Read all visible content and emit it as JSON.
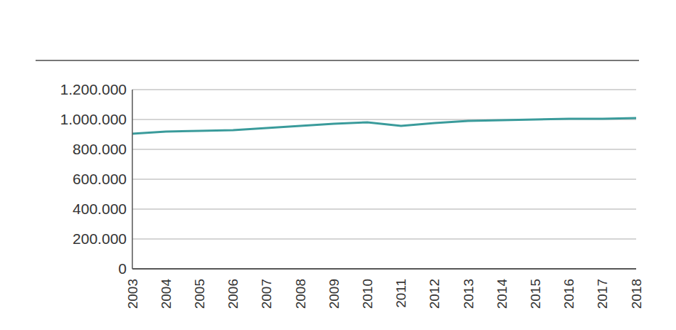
{
  "chart_data": {
    "type": "line",
    "categories": [
      "2003",
      "2004",
      "2005",
      "2006",
      "2007",
      "2008",
      "2009",
      "2010",
      "2011",
      "2012",
      "2013",
      "2014",
      "2015",
      "2016",
      "2017",
      "2018"
    ],
    "values": [
      905000,
      919000,
      924000,
      929000,
      943000,
      957000,
      971000,
      981000,
      957000,
      976000,
      990000,
      995000,
      1000000,
      1005000,
      1005000,
      1010000
    ],
    "color": "#3a9b9b",
    "ylim": [
      0,
      1200000
    ],
    "yticks": [
      0,
      {
        "value": 200000,
        "label": "200.000"
      },
      {
        "value": 400000,
        "label": "400.000"
      },
      {
        "value": 600000,
        "label": "600.000"
      },
      {
        "value": 800000,
        "label": "800.000"
      },
      {
        "value": 1000000,
        "label": "1.000.000"
      },
      {
        "value": 1200000,
        "label": "1.200.000"
      }
    ],
    "grid": true
  }
}
